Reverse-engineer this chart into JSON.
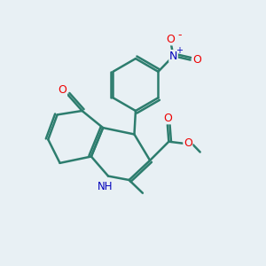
{
  "bg_color": "#e8f0f4",
  "bond_color": "#2d7d6e",
  "bond_width": 1.8,
  "atom_colors": {
    "O": "#ee0000",
    "N": "#0000bb",
    "C": "#2d7d6e"
  },
  "figsize": [
    3.0,
    3.0
  ],
  "dpi": 100
}
